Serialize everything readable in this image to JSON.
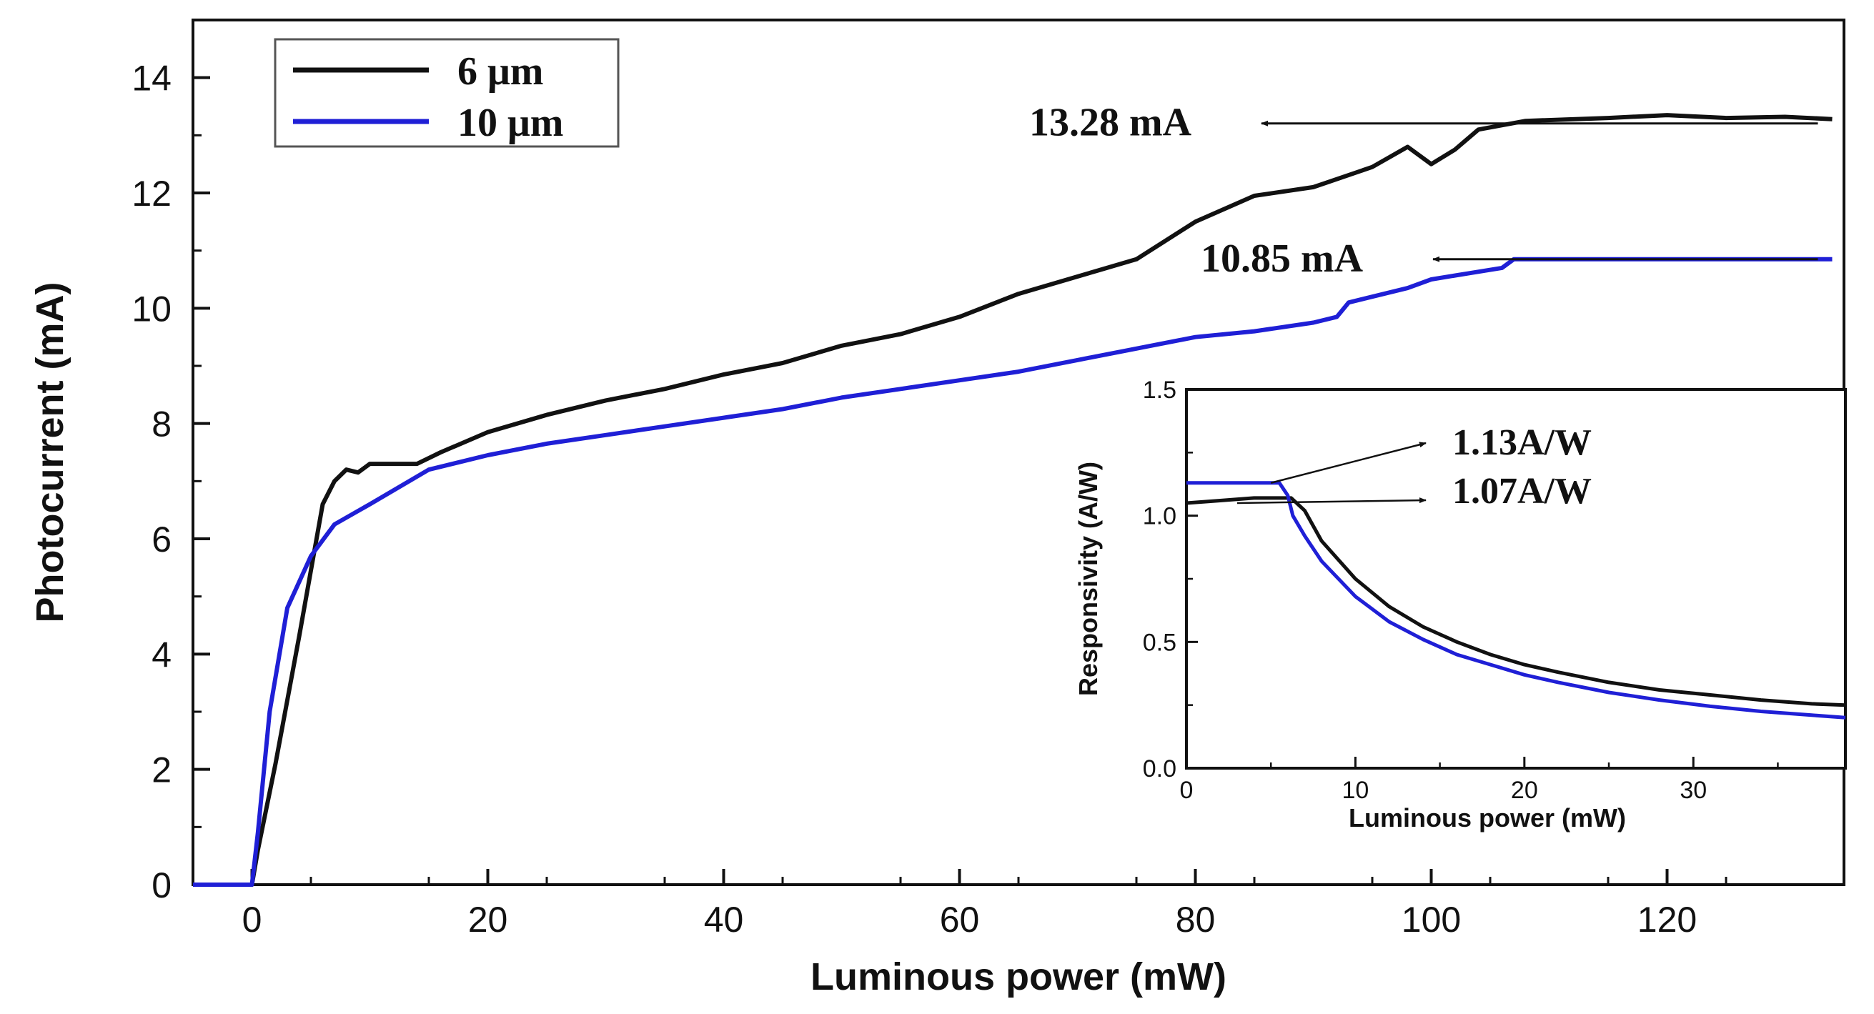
{
  "chart_data": [
    {
      "id": "main",
      "type": "line",
      "xlabel": "Luminous power (mW)",
      "ylabel": "Photocurrent (mA)",
      "xlim": [
        -5,
        135
      ],
      "ylim": [
        0,
        15
      ],
      "xticks": [
        0,
        20,
        40,
        60,
        80,
        100,
        120
      ],
      "yticks": [
        0,
        2,
        4,
        6,
        8,
        10,
        12,
        14
      ],
      "x_minor_step": 10,
      "y_minor_step": 1,
      "legend": {
        "placement": "top-left",
        "entries": [
          "6 μm",
          "10 μm"
        ]
      },
      "series": [
        {
          "name": "6 μm",
          "color": "#111111",
          "points": [
            [
              -5,
              0
            ],
            [
              0,
              0
            ],
            [
              0.5,
              0.6
            ],
            [
              2,
              2.1
            ],
            [
              4,
              4.3
            ],
            [
              6,
              6.6
            ],
            [
              7,
              7.0
            ],
            [
              8,
              7.2
            ],
            [
              9,
              7.15
            ],
            [
              10,
              7.3
            ],
            [
              14,
              7.3
            ],
            [
              16,
              7.5
            ],
            [
              20,
              7.85
            ],
            [
              25,
              8.15
            ],
            [
              30,
              8.4
            ],
            [
              35,
              8.6
            ],
            [
              40,
              8.85
            ],
            [
              45,
              9.05
            ],
            [
              50,
              9.35
            ],
            [
              55,
              9.55
            ],
            [
              60,
              9.85
            ],
            [
              65,
              10.25
            ],
            [
              70,
              10.55
            ],
            [
              75,
              10.85
            ],
            [
              80,
              11.5
            ],
            [
              85,
              11.95
            ],
            [
              90,
              12.1
            ],
            [
              95,
              12.45
            ],
            [
              98,
              12.8
            ],
            [
              100,
              12.5
            ],
            [
              102,
              12.75
            ],
            [
              104,
              13.1
            ],
            [
              108,
              13.25
            ],
            [
              115,
              13.3
            ],
            [
              120,
              13.35
            ],
            [
              125,
              13.3
            ],
            [
              130,
              13.32
            ],
            [
              134,
              13.28
            ]
          ]
        },
        {
          "name": "10 μm",
          "color": "#1f1fd6",
          "points": [
            [
              -5,
              0
            ],
            [
              0,
              0
            ],
            [
              0.5,
              0.9
            ],
            [
              1.5,
              3.0
            ],
            [
              3,
              4.8
            ],
            [
              5,
              5.7
            ],
            [
              7,
              6.25
            ],
            [
              10,
              6.6
            ],
            [
              15,
              7.2
            ],
            [
              20,
              7.45
            ],
            [
              25,
              7.65
            ],
            [
              30,
              7.8
            ],
            [
              35,
              7.95
            ],
            [
              40,
              8.1
            ],
            [
              45,
              8.25
            ],
            [
              50,
              8.45
            ],
            [
              55,
              8.6
            ],
            [
              60,
              8.75
            ],
            [
              65,
              8.9
            ],
            [
              70,
              9.1
            ],
            [
              75,
              9.3
            ],
            [
              80,
              9.5
            ],
            [
              85,
              9.6
            ],
            [
              90,
              9.75
            ],
            [
              92,
              9.85
            ],
            [
              93,
              10.1
            ],
            [
              95,
              10.2
            ],
            [
              98,
              10.35
            ],
            [
              100,
              10.5
            ],
            [
              103,
              10.6
            ],
            [
              106,
              10.7
            ],
            [
              107,
              10.85
            ],
            [
              110,
              10.85
            ],
            [
              120,
              10.85
            ],
            [
              130,
              10.85
            ],
            [
              134,
              10.85
            ]
          ]
        }
      ],
      "annotations": [
        {
          "text": "13.28 mA",
          "points_to": [
            134,
            13.28
          ]
        },
        {
          "text": "10.85 mA",
          "points_to": [
            134,
            10.85
          ]
        }
      ]
    },
    {
      "id": "inset",
      "type": "line",
      "xlabel": "Luminous power (mW)",
      "ylabel": "Responsivity (A/W)",
      "xlim": [
        0,
        39
      ],
      "ylim": [
        0,
        1.5
      ],
      "xticks": [
        0,
        10,
        20,
        30
      ],
      "yticks": [
        0.0,
        0.5,
        1.0,
        1.5
      ],
      "ytick_labels": [
        "0.0",
        "0.5",
        "1.0",
        "1.5"
      ],
      "x_minor_step": 5,
      "y_minor_step": 0.25,
      "series": [
        {
          "name": "6 μm",
          "color": "#111111",
          "points": [
            [
              0,
              1.05
            ],
            [
              2,
              1.06
            ],
            [
              4,
              1.07
            ],
            [
              6.2,
              1.07
            ],
            [
              7,
              1.02
            ],
            [
              8,
              0.9
            ],
            [
              10,
              0.75
            ],
            [
              12,
              0.64
            ],
            [
              14,
              0.56
            ],
            [
              16,
              0.5
            ],
            [
              18,
              0.45
            ],
            [
              20,
              0.41
            ],
            [
              22,
              0.38
            ],
            [
              25,
              0.34
            ],
            [
              28,
              0.31
            ],
            [
              31,
              0.29
            ],
            [
              34,
              0.27
            ],
            [
              37,
              0.255
            ],
            [
              39,
              0.25
            ]
          ]
        },
        {
          "name": "10 μm",
          "color": "#1f1fd6",
          "points": [
            [
              0,
              1.13
            ],
            [
              2,
              1.13
            ],
            [
              4,
              1.13
            ],
            [
              5.5,
              1.13
            ],
            [
              6,
              1.08
            ],
            [
              6.3,
              1.0
            ],
            [
              7,
              0.92
            ],
            [
              8,
              0.82
            ],
            [
              10,
              0.68
            ],
            [
              12,
              0.58
            ],
            [
              14,
              0.51
            ],
            [
              16,
              0.45
            ],
            [
              18,
              0.41
            ],
            [
              20,
              0.37
            ],
            [
              22,
              0.34
            ],
            [
              25,
              0.3
            ],
            [
              28,
              0.27
            ],
            [
              31,
              0.245
            ],
            [
              34,
              0.225
            ],
            [
              37,
              0.21
            ],
            [
              39,
              0.2
            ]
          ]
        }
      ],
      "annotations": [
        {
          "text": "1.13A/W",
          "from": [
            5,
            1.13
          ]
        },
        {
          "text": "1.07A/W",
          "from": [
            3,
            1.05
          ]
        }
      ]
    }
  ]
}
